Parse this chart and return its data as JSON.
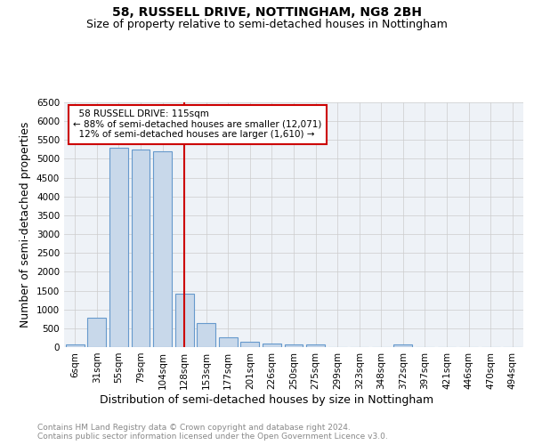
{
  "title": "58, RUSSELL DRIVE, NOTTINGHAM, NG8 2BH",
  "subtitle": "Size of property relative to semi-detached houses in Nottingham",
  "xlabel": "Distribution of semi-detached houses by size in Nottingham",
  "ylabel": "Number of semi-detached properties",
  "categories": [
    "6sqm",
    "31sqm",
    "55sqm",
    "79sqm",
    "104sqm",
    "128sqm",
    "153sqm",
    "177sqm",
    "201sqm",
    "226sqm",
    "250sqm",
    "275sqm",
    "299sqm",
    "323sqm",
    "348sqm",
    "372sqm",
    "397sqm",
    "421sqm",
    "446sqm",
    "470sqm",
    "494sqm"
  ],
  "values": [
    60,
    780,
    5300,
    5250,
    5200,
    1420,
    630,
    260,
    140,
    90,
    60,
    70,
    0,
    0,
    0,
    80,
    0,
    0,
    0,
    0,
    0
  ],
  "bar_color": "#c8d8ea",
  "bar_edge_color": "#6699cc",
  "property_label": "58 RUSSELL DRIVE: 115sqm",
  "smaller_pct": 88,
  "smaller_count": "12,071",
  "larger_pct": 12,
  "larger_count": "1,610",
  "vline_color": "#cc0000",
  "annotation_box_color": "#cc0000",
  "vline_index": 5,
  "ylim": [
    0,
    6500
  ],
  "yticks": [
    0,
    500,
    1000,
    1500,
    2000,
    2500,
    3000,
    3500,
    4000,
    4500,
    5000,
    5500,
    6000,
    6500
  ],
  "grid_color": "#cccccc",
  "bg_color": "#eef2f7",
  "footer_text": "Contains HM Land Registry data © Crown copyright and database right 2024.\nContains public sector information licensed under the Open Government Licence v3.0.",
  "title_fontsize": 10,
  "subtitle_fontsize": 9,
  "axis_label_fontsize": 9,
  "tick_fontsize": 7.5,
  "footer_fontsize": 6.5,
  "annot_fontsize": 7.5
}
